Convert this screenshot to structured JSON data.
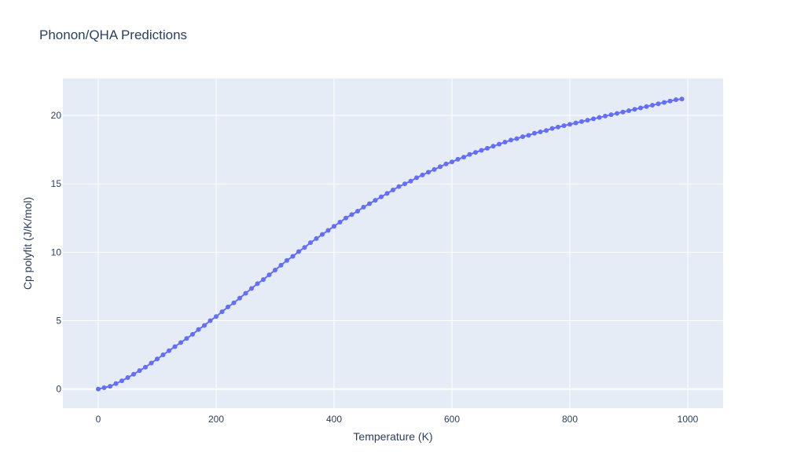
{
  "chart_data": {
    "type": "scatter",
    "mode": "lines+markers",
    "title": "Phonon/QHA Predictions",
    "xlabel": "Temperature (K)",
    "ylabel": "Cp polyfit (J/K/mol)",
    "xlim": [
      -60,
      1060
    ],
    "ylim": [
      -1.4,
      22.7
    ],
    "xticks": [
      0,
      200,
      400,
      600,
      800,
      1000
    ],
    "xtick_labels": [
      "0",
      "200",
      "400",
      "600",
      "800",
      "1000"
    ],
    "yticks": [
      0,
      5,
      10,
      15,
      20
    ],
    "ytick_labels": [
      "0",
      "5",
      "10",
      "15",
      "20"
    ],
    "grid": true,
    "colors": {
      "plot_bg": "#e5ecf6",
      "grid": "#ffffff",
      "series": "#636efa",
      "text": "#2a3f5f"
    },
    "series": [
      {
        "x": [
          0,
          10,
          20,
          30,
          40,
          50,
          60,
          70,
          80,
          90,
          100,
          110,
          120,
          130,
          140,
          150,
          160,
          170,
          180,
          190,
          200,
          210,
          220,
          230,
          240,
          250,
          260,
          270,
          280,
          290,
          300,
          310,
          320,
          330,
          340,
          350,
          360,
          370,
          380,
          390,
          400,
          410,
          420,
          430,
          440,
          450,
          460,
          470,
          480,
          490,
          500,
          510,
          520,
          530,
          540,
          550,
          560,
          570,
          580,
          590,
          600,
          610,
          620,
          630,
          640,
          650,
          660,
          670,
          680,
          690,
          700,
          710,
          720,
          730,
          740,
          750,
          760,
          770,
          780,
          790,
          800,
          810,
          820,
          830,
          840,
          850,
          860,
          870,
          880,
          890,
          900,
          910,
          920,
          930,
          940,
          950,
          960,
          970,
          980,
          990
        ],
        "y": [
          0.0,
          0.1,
          0.2,
          0.4,
          0.6,
          0.84,
          1.08,
          1.35,
          1.6,
          1.9,
          2.2,
          2.5,
          2.8,
          3.1,
          3.4,
          3.7,
          4.0,
          4.35,
          4.65,
          5.0,
          5.3,
          5.65,
          6.0,
          6.3,
          6.65,
          7.0,
          7.35,
          7.7,
          8.0,
          8.35,
          8.7,
          9.05,
          9.4,
          9.7,
          10.05,
          10.35,
          10.7,
          11.0,
          11.3,
          11.6,
          11.9,
          12.2,
          12.5,
          12.75,
          13.0,
          13.3,
          13.55,
          13.8,
          14.05,
          14.3,
          14.55,
          14.8,
          15.0,
          15.2,
          15.45,
          15.65,
          15.85,
          16.05,
          16.25,
          16.45,
          16.6,
          16.8,
          16.95,
          17.15,
          17.3,
          17.45,
          17.6,
          17.75,
          17.9,
          18.05,
          18.2,
          18.3,
          18.45,
          18.55,
          18.7,
          18.8,
          18.9,
          19.05,
          19.15,
          19.25,
          19.35,
          19.45,
          19.55,
          19.65,
          19.75,
          19.85,
          19.95,
          20.05,
          20.15,
          20.25,
          20.35,
          20.45,
          20.55,
          20.65,
          20.75,
          20.85,
          20.95,
          21.05,
          21.15,
          21.2
        ]
      }
    ]
  }
}
